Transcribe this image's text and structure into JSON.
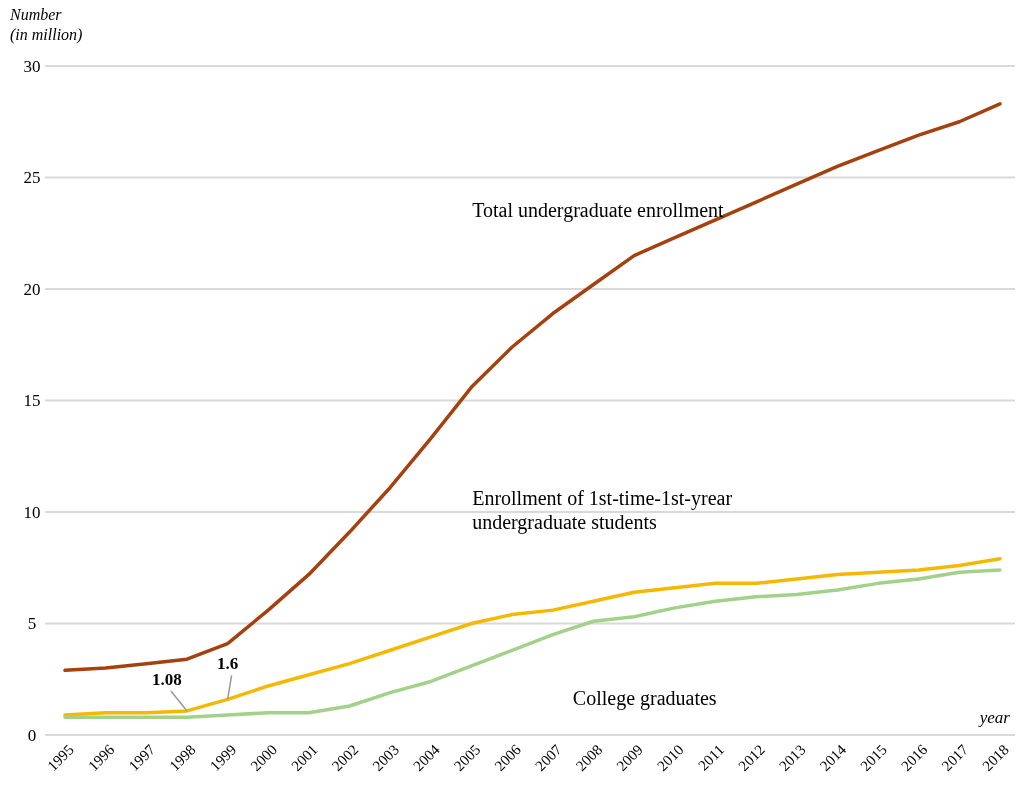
{
  "chart_data": {
    "type": "line",
    "xlabel": "year",
    "ylabel": "Number (in million)",
    "categories": [
      "1995",
      "1996",
      "1997",
      "1998",
      "1999",
      "2000",
      "2001",
      "2002",
      "2003",
      "2004",
      "2005",
      "2006",
      "2007",
      "2008",
      "2009",
      "2010",
      "2011",
      "2012",
      "2013",
      "2014",
      "2015",
      "2016",
      "2017",
      "2018"
    ],
    "series": [
      {
        "name": "Total undergraduate enrollment",
        "color": "#a5410e",
        "values": [
          2.9,
          3.0,
          3.2,
          3.4,
          4.1,
          5.6,
          7.2,
          9.1,
          11.1,
          13.3,
          15.6,
          17.4,
          18.9,
          20.2,
          21.5,
          22.3,
          23.1,
          23.9,
          24.7,
          25.5,
          26.2,
          26.9,
          27.5,
          28.3
        ]
      },
      {
        "name": "Enrollment of 1st-time-1st-yrear undergraduate students",
        "color": "#f5b800",
        "values": [
          0.9,
          1.0,
          1.0,
          1.08,
          1.6,
          2.2,
          2.7,
          3.2,
          3.8,
          4.4,
          5.0,
          5.4,
          5.6,
          6.0,
          6.4,
          6.6,
          6.8,
          6.8,
          7.0,
          7.2,
          7.3,
          7.4,
          7.6,
          7.9
        ]
      },
      {
        "name": "College graduates",
        "color": "#a3d18a",
        "values": [
          0.8,
          0.8,
          0.8,
          0.8,
          0.9,
          1.0,
          1.0,
          1.3,
          1.9,
          2.4,
          3.1,
          3.8,
          4.5,
          5.1,
          5.3,
          5.7,
          6.0,
          6.2,
          6.3,
          6.5,
          6.8,
          7.0,
          7.3,
          7.4
        ]
      }
    ],
    "ylim": [
      0,
      30
    ],
    "yticks": [
      0,
      5,
      10,
      15,
      20,
      25,
      30
    ],
    "grid": "y",
    "annotations": [
      {
        "text": "1.08",
        "x": "1998",
        "y": 1.08
      },
      {
        "text": "1.6",
        "x": "1999",
        "y": 1.6
      }
    ]
  }
}
